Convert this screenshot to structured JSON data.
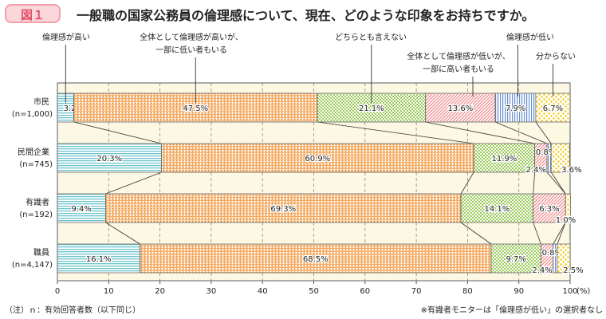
{
  "figure_label": "図１",
  "title": "一般職の国家公務員の倫理感について、現在、どのような印象をお持ちですか。",
  "note_left": "（注）ｎ：有効回答者数（以下同じ）",
  "note_right": "※有識者モニターは「倫理感が低い」の選択者なし",
  "chart_data": {
    "type": "bar",
    "orientation": "horizontal-stacked-100",
    "categories": [
      {
        "name": "市民",
        "n": "(n=1,000)"
      },
      {
        "name": "民間企業",
        "n": "(n=745)"
      },
      {
        "name": "有識者",
        "n": "(n=192)"
      },
      {
        "name": "職員",
        "n": "(n=4,147)"
      }
    ],
    "series": [
      {
        "name": "倫理感が高い",
        "values": [
          3.2,
          20.3,
          9.4,
          16.1
        ],
        "color": "#6cc4cc",
        "pattern": "horizontal-lines"
      },
      {
        "name": "全体として倫理感が高いが、一部に低い者もいる",
        "values": [
          47.5,
          60.9,
          69.3,
          68.5
        ],
        "color": "#f2953a",
        "pattern": "dots"
      },
      {
        "name": "どちらとも言えない",
        "values": [
          21.1,
          11.9,
          14.1,
          9.7
        ],
        "color": "#9acb5a",
        "pattern": "checker"
      },
      {
        "name": "全体として倫理感が低いが、一部に高い者もいる",
        "values": [
          13.6,
          2.4,
          6.3,
          2.4
        ],
        "color": "#f08a8a",
        "pattern": "diagonal"
      },
      {
        "name": "倫理感が低い",
        "values": [
          7.9,
          0.8,
          0,
          0.8
        ],
        "color": "#6a8fd0",
        "pattern": "vertical-lines"
      },
      {
        "name": "分からない",
        "values": [
          6.7,
          3.6,
          1.0,
          2.5
        ],
        "color": "#f5c400",
        "pattern": "sparse-dots"
      }
    ],
    "xticks": [
      0,
      10,
      20,
      30,
      40,
      50,
      60,
      70,
      80,
      90,
      100
    ],
    "xunit": "(%)",
    "xlim": [
      0,
      100
    ],
    "grid": true,
    "background": "#fdf8e4"
  }
}
